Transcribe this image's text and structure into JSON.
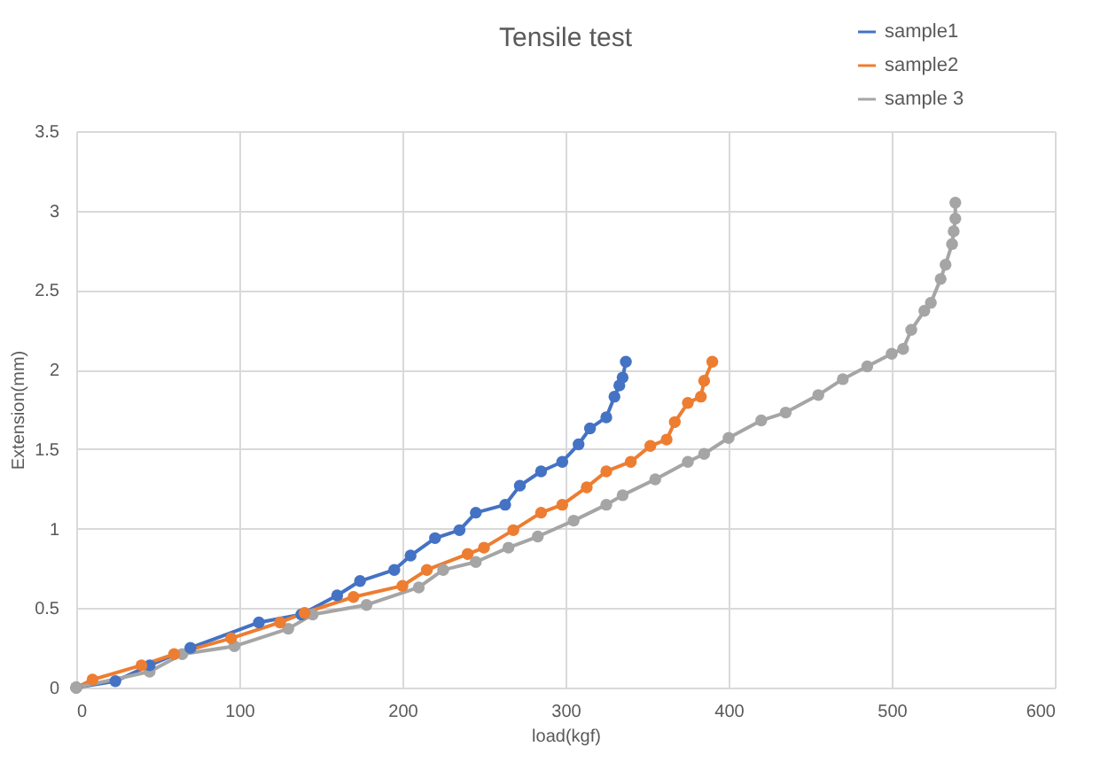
{
  "chart_data": {
    "type": "line",
    "title": "Tensile test",
    "xlabel": "load(kgf)",
    "ylabel": "Extension(mm)",
    "xlim": [
      0,
      600
    ],
    "xticks": [
      0,
      100,
      200,
      300,
      400,
      500,
      600
    ],
    "ylim": [
      0,
      3.5
    ],
    "yticks": [
      0,
      0.5,
      1,
      1.5,
      2,
      2.5,
      3,
      3.5
    ],
    "grid": true,
    "legend": "top right",
    "marker": "circle",
    "line_style": "solid",
    "series": [
      {
        "name": "sample1",
        "color": "#4472c4",
        "x": [
          0,
          24,
          45,
          70,
          112,
          138,
          160,
          174,
          195,
          205,
          220,
          235,
          245,
          263,
          272,
          285,
          298,
          308,
          315,
          325,
          330,
          333,
          335,
          337
        ],
        "values": [
          0,
          0.04,
          0.14,
          0.25,
          0.41,
          0.46,
          0.58,
          0.67,
          0.74,
          0.83,
          0.94,
          0.99,
          1.1,
          1.15,
          1.27,
          1.36,
          1.42,
          1.53,
          1.63,
          1.7,
          1.83,
          1.9,
          1.95,
          2.05
        ]
      },
      {
        "name": "sample2",
        "color": "#ed7d31",
        "x": [
          0,
          10,
          40,
          60,
          95,
          125,
          140,
          170,
          200,
          215,
          240,
          250,
          268,
          285,
          298,
          313,
          325,
          340,
          352,
          362,
          367,
          375,
          383,
          385,
          390
        ],
        "values": [
          0,
          0.05,
          0.14,
          0.21,
          0.31,
          0.41,
          0.47,
          0.57,
          0.64,
          0.74,
          0.84,
          0.88,
          0.99,
          1.1,
          1.15,
          1.26,
          1.36,
          1.42,
          1.52,
          1.56,
          1.67,
          1.79,
          1.83,
          1.93,
          2.05
        ]
      },
      {
        "name": "sample 3",
        "color": "#a5a5a5",
        "x": [
          0,
          45,
          65,
          97,
          130,
          145,
          178,
          210,
          225,
          245,
          265,
          283,
          305,
          325,
          335,
          355,
          375,
          385,
          400,
          420,
          435,
          455,
          470,
          485,
          500,
          507,
          512,
          520,
          524,
          530,
          533,
          537,
          538,
          539,
          539
        ],
        "values": [
          0,
          0.1,
          0.21,
          0.26,
          0.37,
          0.46,
          0.52,
          0.63,
          0.74,
          0.79,
          0.88,
          0.95,
          1.05,
          1.15,
          1.21,
          1.31,
          1.42,
          1.47,
          1.57,
          1.68,
          1.73,
          1.84,
          1.94,
          2.02,
          2.1,
          2.13,
          2.25,
          2.37,
          2.42,
          2.57,
          2.66,
          2.79,
          2.87,
          2.95,
          3.05
        ]
      }
    ]
  }
}
